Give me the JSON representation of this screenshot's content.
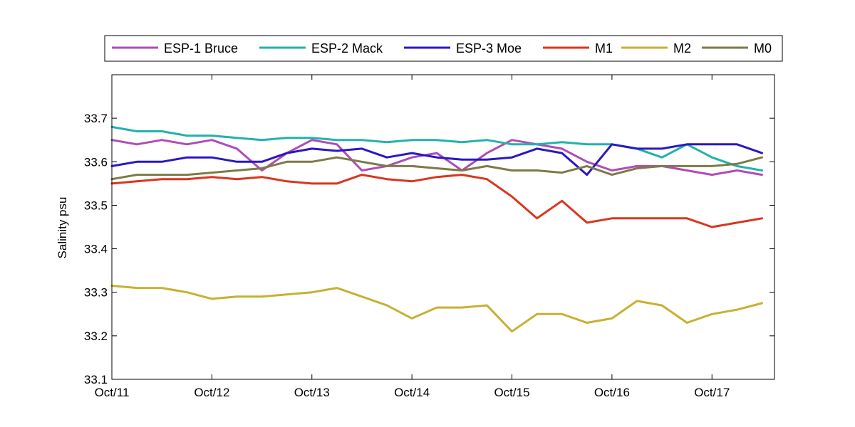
{
  "chart_data": {
    "type": "line",
    "title": "",
    "xlabel": "",
    "ylabel": "Salinity psu",
    "xlim": [
      "Oct/11",
      "Oct/17 15:00"
    ],
    "ylim": [
      33.1,
      33.8
    ],
    "yticks": [
      "33.1",
      "33.2",
      "33.3",
      "33.4",
      "33.5",
      "33.6",
      "33.7"
    ],
    "xticks": [
      "Oct/11",
      "Oct/12",
      "Oct/13",
      "Oct/14",
      "Oct/15",
      "Oct/16",
      "Oct/17"
    ],
    "grid": false,
    "legend": "top, outside, horizontal",
    "series": [
      {
        "name": "ESP-1 Bruce",
        "color": "#b04bb8",
        "x": [
          "Oct/11 00:00",
          "Oct/11 06:00",
          "Oct/11 12:00",
          "Oct/11 18:00",
          "Oct/12 00:00",
          "Oct/12 06:00",
          "Oct/12 12:00",
          "Oct/12 18:00",
          "Oct/13 00:00",
          "Oct/13 06:00",
          "Oct/13 12:00",
          "Oct/13 18:00",
          "Oct/14 00:00",
          "Oct/14 06:00",
          "Oct/14 12:00",
          "Oct/14 18:00",
          "Oct/15 00:00",
          "Oct/15 06:00",
          "Oct/15 12:00",
          "Oct/15 18:00",
          "Oct/16 00:00",
          "Oct/16 06:00",
          "Oct/16 12:00",
          "Oct/16 18:00",
          "Oct/17 00:00",
          "Oct/17 06:00",
          "Oct/17 12:00"
        ],
        "y": [
          33.65,
          33.64,
          33.65,
          33.64,
          33.65,
          33.63,
          33.58,
          33.62,
          33.65,
          33.64,
          33.58,
          33.59,
          33.61,
          33.62,
          33.58,
          33.62,
          33.65,
          33.64,
          33.63,
          33.6,
          33.58,
          33.59,
          33.59,
          33.58,
          33.57,
          33.58,
          33.57
        ]
      },
      {
        "name": "ESP-2 Mack",
        "color": "#22b2ac",
        "x": [
          "Oct/11 00:00",
          "Oct/11 06:00",
          "Oct/11 12:00",
          "Oct/11 18:00",
          "Oct/12 00:00",
          "Oct/12 06:00",
          "Oct/12 12:00",
          "Oct/12 18:00",
          "Oct/13 00:00",
          "Oct/13 06:00",
          "Oct/13 12:00",
          "Oct/13 18:00",
          "Oct/14 00:00",
          "Oct/14 06:00",
          "Oct/14 12:00",
          "Oct/14 18:00",
          "Oct/15 00:00",
          "Oct/15 06:00",
          "Oct/15 12:00",
          "Oct/15 18:00",
          "Oct/16 00:00",
          "Oct/16 06:00",
          "Oct/16 12:00",
          "Oct/16 18:00",
          "Oct/17 00:00",
          "Oct/17 06:00",
          "Oct/17 12:00"
        ],
        "y": [
          33.68,
          33.67,
          33.67,
          33.66,
          33.66,
          33.655,
          33.65,
          33.655,
          33.655,
          33.65,
          33.65,
          33.645,
          33.65,
          33.65,
          33.645,
          33.65,
          33.64,
          33.64,
          33.645,
          33.64,
          33.64,
          33.63,
          33.61,
          33.64,
          33.61,
          33.59,
          33.58
        ]
      },
      {
        "name": "ESP-3 Moe",
        "color": "#2a17c4",
        "x": [
          "Oct/11 00:00",
          "Oct/11 06:00",
          "Oct/11 12:00",
          "Oct/11 18:00",
          "Oct/12 00:00",
          "Oct/12 06:00",
          "Oct/12 12:00",
          "Oct/12 18:00",
          "Oct/13 00:00",
          "Oct/13 06:00",
          "Oct/13 12:00",
          "Oct/13 18:00",
          "Oct/14 00:00",
          "Oct/14 06:00",
          "Oct/14 12:00",
          "Oct/14 18:00",
          "Oct/15 00:00",
          "Oct/15 06:00",
          "Oct/15 12:00",
          "Oct/15 18:00",
          "Oct/16 00:00",
          "Oct/16 06:00",
          "Oct/16 12:00",
          "Oct/16 18:00",
          "Oct/17 00:00",
          "Oct/17 06:00",
          "Oct/17 12:00"
        ],
        "y": [
          33.59,
          33.6,
          33.6,
          33.61,
          33.61,
          33.6,
          33.6,
          33.62,
          33.63,
          33.625,
          33.63,
          33.61,
          33.62,
          33.61,
          33.605,
          33.605,
          33.61,
          33.63,
          33.62,
          33.57,
          33.64,
          33.63,
          33.63,
          33.64,
          33.64,
          33.64,
          33.62
        ]
      },
      {
        "name": "M1",
        "color": "#d8361e",
        "x": [
          "Oct/11 00:00",
          "Oct/11 06:00",
          "Oct/11 12:00",
          "Oct/11 18:00",
          "Oct/12 00:00",
          "Oct/12 06:00",
          "Oct/12 12:00",
          "Oct/12 18:00",
          "Oct/13 00:00",
          "Oct/13 06:00",
          "Oct/13 12:00",
          "Oct/13 18:00",
          "Oct/14 00:00",
          "Oct/14 06:00",
          "Oct/14 12:00",
          "Oct/14 18:00",
          "Oct/15 00:00",
          "Oct/15 06:00",
          "Oct/15 12:00",
          "Oct/15 18:00",
          "Oct/16 00:00",
          "Oct/16 06:00",
          "Oct/16 12:00",
          "Oct/16 18:00",
          "Oct/17 00:00",
          "Oct/17 06:00",
          "Oct/17 12:00"
        ],
        "y": [
          33.55,
          33.555,
          33.56,
          33.56,
          33.565,
          33.56,
          33.565,
          33.555,
          33.55,
          33.55,
          33.57,
          33.56,
          33.555,
          33.565,
          33.57,
          33.56,
          33.52,
          33.47,
          33.51,
          33.46,
          33.47,
          33.47,
          33.47,
          33.47,
          33.45,
          33.46,
          33.47
        ]
      },
      {
        "name": "M2",
        "color": "#c8b032",
        "x": [
          "Oct/11 00:00",
          "Oct/11 06:00",
          "Oct/11 12:00",
          "Oct/11 18:00",
          "Oct/12 00:00",
          "Oct/12 06:00",
          "Oct/12 12:00",
          "Oct/12 18:00",
          "Oct/13 00:00",
          "Oct/13 06:00",
          "Oct/13 12:00",
          "Oct/13 18:00",
          "Oct/14 00:00",
          "Oct/14 06:00",
          "Oct/14 12:00",
          "Oct/14 18:00",
          "Oct/15 00:00",
          "Oct/15 06:00",
          "Oct/15 12:00",
          "Oct/15 18:00",
          "Oct/16 00:00",
          "Oct/16 06:00",
          "Oct/16 12:00",
          "Oct/16 18:00",
          "Oct/17 00:00",
          "Oct/17 06:00",
          "Oct/17 12:00"
        ],
        "y": [
          33.315,
          33.31,
          33.31,
          33.3,
          33.285,
          33.29,
          33.29,
          33.295,
          33.3,
          33.31,
          33.29,
          33.27,
          33.24,
          33.265,
          33.265,
          33.27,
          33.21,
          33.25,
          33.25,
          33.23,
          33.24,
          33.28,
          33.27,
          33.23,
          33.25,
          33.26,
          33.275
        ]
      },
      {
        "name": "M0",
        "color": "#7d7a47",
        "x": [
          "Oct/11 00:00",
          "Oct/11 06:00",
          "Oct/11 12:00",
          "Oct/11 18:00",
          "Oct/12 00:00",
          "Oct/12 06:00",
          "Oct/12 12:00",
          "Oct/12 18:00",
          "Oct/13 00:00",
          "Oct/13 06:00",
          "Oct/13 12:00",
          "Oct/13 18:00",
          "Oct/14 00:00",
          "Oct/14 06:00",
          "Oct/14 12:00",
          "Oct/14 18:00",
          "Oct/15 00:00",
          "Oct/15 06:00",
          "Oct/15 12:00",
          "Oct/15 18:00",
          "Oct/16 00:00",
          "Oct/16 06:00",
          "Oct/16 12:00",
          "Oct/16 18:00",
          "Oct/17 00:00",
          "Oct/17 06:00",
          "Oct/17 12:00"
        ],
        "y": [
          33.56,
          33.57,
          33.57,
          33.57,
          33.575,
          33.58,
          33.585,
          33.6,
          33.6,
          33.61,
          33.6,
          33.59,
          33.59,
          33.585,
          33.58,
          33.59,
          33.58,
          33.58,
          33.575,
          33.59,
          33.57,
          33.585,
          33.59,
          33.59,
          33.59,
          33.595,
          33.61
        ]
      }
    ]
  }
}
